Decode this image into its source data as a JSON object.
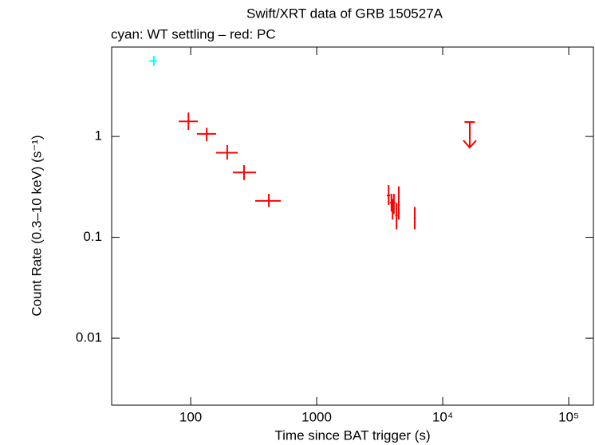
{
  "chart_data": {
    "type": "scatter",
    "title": "Swift/XRT data of GRB 150527A",
    "subtitle": "cyan: WT settling – red: PC",
    "x_label": "Time since BAT trigger (s)",
    "y_label": "Count Rate (0.3–10 keV) (s⁻¹)",
    "log_x": true,
    "log_y": true,
    "xlim": [
      23.6,
      157000
    ],
    "ylim": [
      0.00217,
      7.7
    ],
    "xticks": [
      100,
      1000,
      {
        "value": 10000,
        "label": "10⁴"
      },
      {
        "value": 100000,
        "label": "10⁵"
      }
    ],
    "yticks": [
      0.01,
      0.1,
      1
    ],
    "series": [
      {
        "color": "#00ffff",
        "x": [
          51
        ],
        "x_low": [
          47
        ],
        "x_high": [
          54
        ],
        "values": [
          5.6
        ],
        "y_low": [
          5.0
        ],
        "y_high": [
          6.3
        ]
      },
      {
        "color": "#ff0000",
        "x": [
          96,
          134,
          195,
          265,
          417,
          3720,
          3920,
          4000,
          4100,
          4300,
          4480,
          6000
        ],
        "x_low": [
          80.4,
          112,
          159,
          216,
          325,
          3600,
          3800,
          3900,
          4000,
          4200,
          4400,
          5900
        ],
        "x_high": [
          114,
          159,
          236,
          330,
          519,
          3840,
          4040,
          4100,
          4200,
          4400,
          4560,
          6100
        ],
        "values": [
          1.41,
          1.06,
          0.69,
          0.44,
          0.23,
          0.26,
          0.22,
          0.19,
          0.22,
          0.165,
          0.21,
          0.156
        ],
        "y_low": [
          1.16,
          0.9,
          0.59,
          0.37,
          0.2,
          0.21,
          0.18,
          0.15,
          0.17,
          0.12,
          0.15,
          0.12
        ],
        "y_high": [
          1.73,
          1.22,
          0.82,
          0.52,
          0.27,
          0.33,
          0.27,
          0.24,
          0.27,
          0.22,
          0.32,
          0.2
        ]
      }
    ],
    "upper_limits": {
      "color": "#ff0000",
      "x": [
        16400
      ],
      "x_low": [
        14900
      ],
      "x_high": [
        18000
      ],
      "values": [
        1.39
      ]
    }
  }
}
